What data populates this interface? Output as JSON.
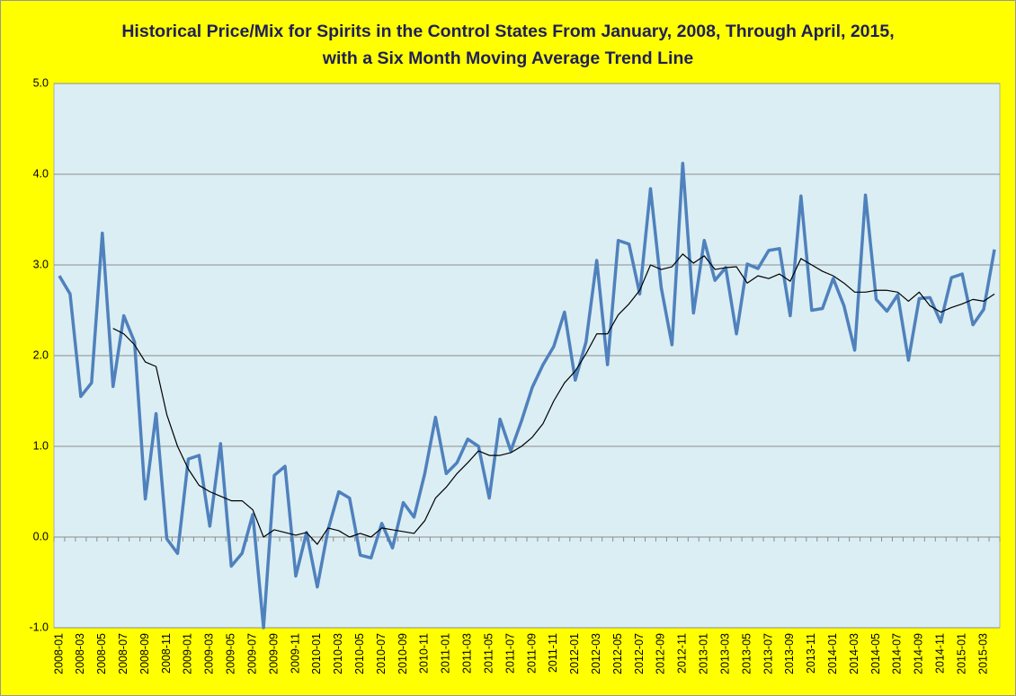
{
  "chart_data": {
    "type": "line",
    "title": "Historical Price/Mix for Spirits in the Control States From January, 2008, Through April, 2015, with a Six Month Moving Average Trend Line",
    "categories": [
      "2008-01",
      null,
      "2008-03",
      null,
      "2008-05",
      null,
      "2008-07",
      null,
      "2008-09",
      null,
      "2008-11",
      null,
      "2009-01",
      null,
      "2009-03",
      null,
      "2009-05",
      null,
      "2009-07",
      null,
      "2009-09",
      null,
      "2009-11",
      null,
      "2010-01",
      null,
      "2010-03",
      null,
      "2010-05",
      null,
      "2010-07",
      null,
      "2010-09",
      null,
      "2010-11",
      null,
      "2011-01",
      null,
      "2011-03",
      null,
      "2011-05",
      null,
      "2011-07",
      null,
      "2011-09",
      null,
      "2011-11",
      null,
      "2012-01",
      null,
      "2012-03",
      null,
      "2012-05",
      null,
      "2012-07",
      null,
      "2012-09",
      null,
      "2012-11",
      null,
      "2013-01",
      null,
      "2013-03",
      null,
      "2013-05",
      null,
      "2013-07",
      null,
      "2013-09",
      null,
      "2013-11",
      null,
      "2014-01",
      null,
      "2014-03",
      null,
      "2014-05",
      null,
      "2014-07",
      null,
      "2014-09",
      null,
      "2014-11",
      null,
      "2015-01",
      null,
      "2015-03",
      null
    ],
    "series": [
      {
        "color": "#4f81bd",
        "values": [
          2.88,
          2.68,
          1.55,
          1.7,
          3.35,
          1.66,
          2.44,
          2.15,
          0.42,
          1.36,
          -0.02,
          -0.18,
          0.86,
          0.9,
          0.12,
          1.03,
          -0.32,
          -0.18,
          0.25,
          -1.0,
          0.68,
          0.78,
          -0.43,
          0.05,
          -0.55,
          0.08,
          0.5,
          0.43,
          -0.2,
          -0.23,
          0.15,
          -0.12,
          0.38,
          0.22,
          0.7,
          1.32,
          0.7,
          0.82,
          1.08,
          1.0,
          0.43,
          1.3,
          0.95,
          1.28,
          1.65,
          1.9,
          2.1,
          2.48,
          1.73,
          2.15,
          3.05,
          1.9,
          3.27,
          3.23,
          2.68,
          3.84,
          2.75,
          2.12,
          4.12,
          2.47,
          3.27,
          2.83,
          2.97,
          2.24,
          3.01,
          2.96,
          3.16,
          3.18,
          2.44,
          3.76,
          2.5,
          2.52,
          2.85,
          2.55,
          2.06,
          3.77,
          2.62,
          2.49,
          2.67,
          1.95,
          2.63,
          2.64,
          2.37,
          2.86,
          2.9,
          2.34,
          2.51,
          3.17
        ]
      },
      {
        "color": "#000000",
        "values": [
          null,
          null,
          null,
          null,
          null,
          2.3,
          2.24,
          2.12,
          1.93,
          1.88,
          1.35,
          1.0,
          0.75,
          0.57,
          0.5,
          0.45,
          0.4,
          0.4,
          0.3,
          0.0,
          0.08,
          0.05,
          0.02,
          0.05,
          -0.08,
          0.1,
          0.07,
          0.0,
          0.04,
          0.0,
          0.1,
          0.08,
          0.06,
          0.04,
          0.18,
          0.43,
          0.55,
          0.7,
          0.82,
          0.95,
          0.9,
          0.9,
          0.93,
          1.0,
          1.1,
          1.25,
          1.5,
          1.7,
          1.83,
          2.02,
          2.24,
          2.24,
          2.45,
          2.57,
          2.72,
          3.0,
          2.95,
          2.98,
          3.12,
          3.02,
          3.1,
          2.95,
          2.97,
          2.98,
          2.8,
          2.88,
          2.85,
          2.9,
          2.82,
          3.07,
          3.0,
          2.93,
          2.88,
          2.8,
          2.7,
          2.7,
          2.72,
          2.72,
          2.7,
          2.6,
          2.7,
          2.55,
          2.48,
          2.53,
          2.57,
          2.62,
          2.6,
          2.68
        ]
      }
    ],
    "ylim": [
      -1,
      5
    ],
    "yticks": [
      {
        "value": -1,
        "label": "-1.0"
      },
      {
        "value": 0,
        "label": "0.0"
      },
      {
        "value": 1,
        "label": "1.0"
      },
      {
        "value": 2,
        "label": "2.0"
      },
      {
        "value": 3,
        "label": "3.0"
      },
      {
        "value": 4,
        "label": "4.0"
      },
      {
        "value": 5,
        "label": "5.0"
      }
    ],
    "grid": true
  }
}
